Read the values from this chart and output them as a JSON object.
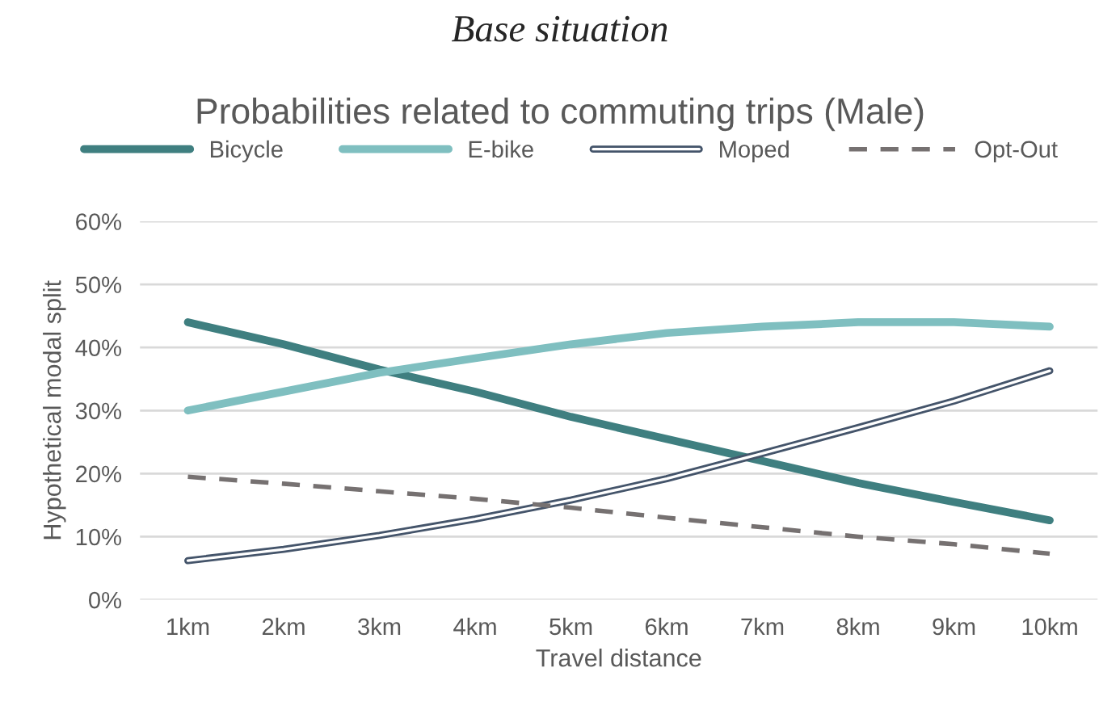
{
  "chart_data": {
    "type": "line",
    "title": "Base situation",
    "subtitle": "Probabilities related to commuting trips (Male)",
    "xlabel": "Travel distance",
    "ylabel": "Hypothetical modal split",
    "categories": [
      "1km",
      "2km",
      "3km",
      "4km",
      "5km",
      "6km",
      "7km",
      "8km",
      "9km",
      "10km"
    ],
    "series": [
      {
        "name": "Bicycle",
        "color": "#3f7f80",
        "values": [
          44,
          40.5,
          36.5,
          33,
          29,
          25.5,
          22,
          18.5,
          15.5,
          12.6
        ]
      },
      {
        "name": "E-bike",
        "color": "#7fbfc0",
        "values": [
          30,
          33,
          36,
          38.3,
          40.5,
          42.3,
          43.3,
          44,
          44,
          43.3
        ]
      },
      {
        "name": "Moped",
        "color": "#44546a",
        "values": [
          6.2,
          8,
          10.2,
          12.8,
          15.8,
          19.2,
          23.2,
          27.3,
          31.5,
          36.3
        ]
      },
      {
        "name": "Opt-Out",
        "color": "#767171",
        "line_style": "dashed",
        "values": [
          19.5,
          18.4,
          17.2,
          16,
          14.6,
          13,
          11.5,
          10,
          8.8,
          7.3
        ]
      }
    ],
    "ylim": [
      0,
      60
    ],
    "yticks": [
      {
        "value": 0,
        "label": "0%"
      },
      {
        "value": 10,
        "label": "10%"
      },
      {
        "value": 20,
        "label": "20%"
      },
      {
        "value": 30,
        "label": "30%"
      },
      {
        "value": 40,
        "label": "40%"
      },
      {
        "value": 50,
        "label": "50%"
      },
      {
        "value": 60,
        "label": "60%"
      }
    ],
    "grid": "y",
    "legend": "top",
    "marker": "none",
    "line_style": "solid"
  }
}
